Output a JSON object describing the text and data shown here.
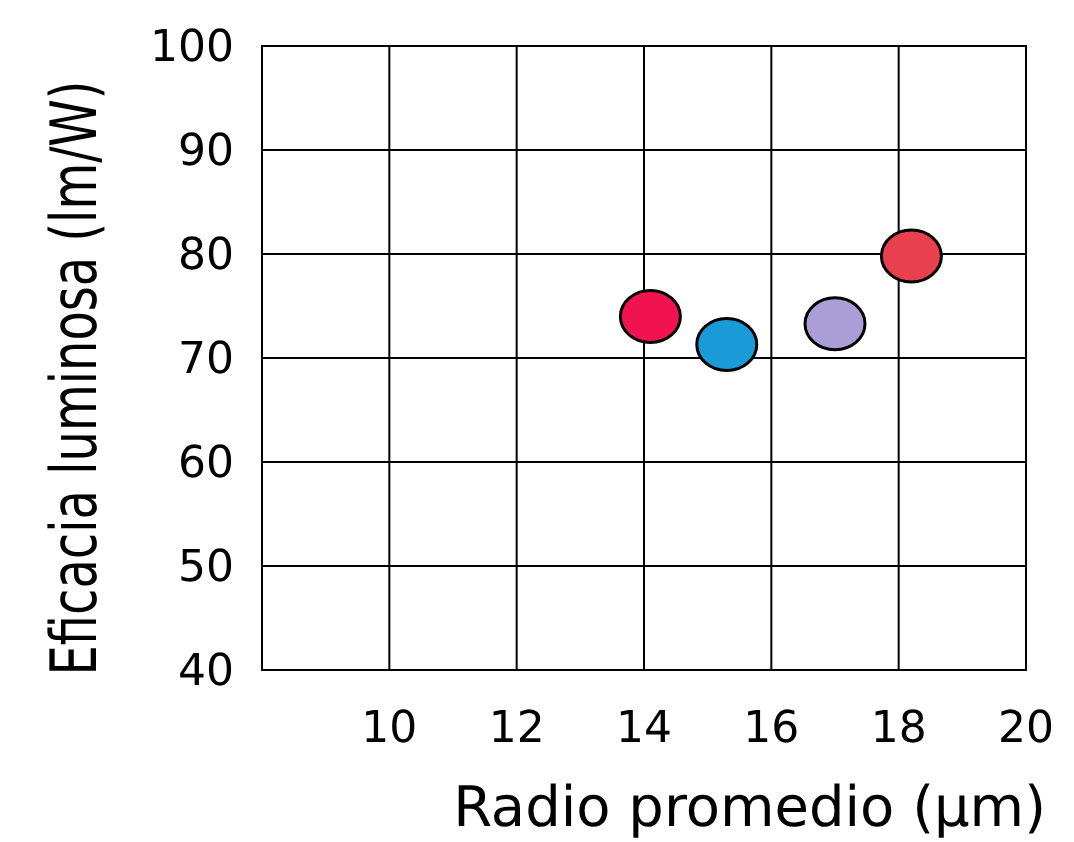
{
  "chart_data": {
    "type": "scatter",
    "xlabel": "Radio promedio (µm)",
    "ylabel": "Eficacia luminosa (lm/W)",
    "x": [
      14.1,
      15.3,
      17.0,
      18.2
    ],
    "series": [
      {
        "values": [
          74.0,
          71.3,
          73.3,
          79.8
        ],
        "colors": [
          "#f0134f",
          "#1a9ad6",
          "#a99fd6",
          "#e8404f"
        ]
      }
    ],
    "xlim": [
      8,
      20
    ],
    "xticks": [
      10,
      12,
      14,
      16,
      18,
      20
    ],
    "ylim": [
      40,
      100
    ],
    "yticks": [
      40,
      50,
      60,
      70,
      80,
      90,
      100
    ],
    "grid": true,
    "marker": "circle"
  }
}
